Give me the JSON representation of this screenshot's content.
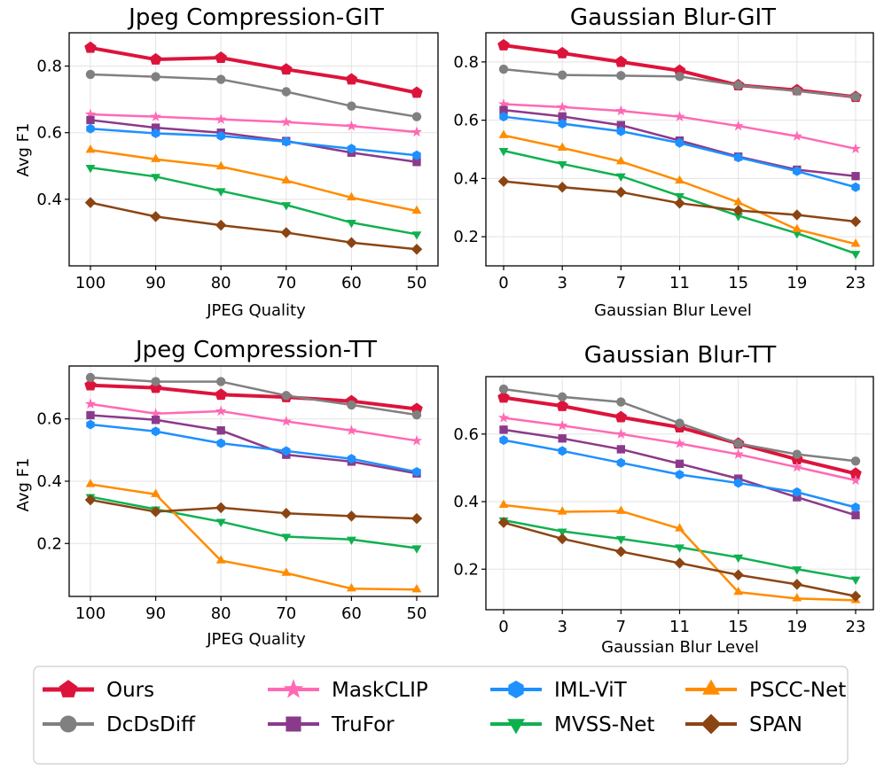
{
  "series_styles": [
    {
      "name": "Ours",
      "color": "#DC143C",
      "marker": "pentagon",
      "width": 4
    },
    {
      "name": "DcDsDiff",
      "color": "#808080",
      "marker": "circle",
      "width": 2.5
    },
    {
      "name": "MaskCLIP",
      "color": "#FF69B4",
      "marker": "star",
      "width": 2.5
    },
    {
      "name": "TruFor",
      "color": "#8B3A8B",
      "marker": "square",
      "width": 2.5
    },
    {
      "name": "IML-ViT",
      "color": "#1E90FF",
      "marker": "hexagon",
      "width": 2.5
    },
    {
      "name": "MVSS-Net",
      "color": "#0FB14F",
      "marker": "triangle-down",
      "width": 2.5
    },
    {
      "name": "PSCC-Net",
      "color": "#FF8C00",
      "marker": "triangle-up",
      "width": 2.5
    },
    {
      "name": "SPAN",
      "color": "#8B4513",
      "marker": "diamond",
      "width": 2.5
    }
  ],
  "legend": {
    "entries": [
      "Ours",
      "MaskCLIP",
      "IML-ViT",
      "PSCC-Net",
      "DcDsDiff",
      "TruFor",
      "MVSS-Net",
      "SPAN"
    ]
  },
  "chart_data": [
    {
      "type": "line",
      "title": "Jpeg Compression-GIT",
      "xlabel": "JPEG Quality",
      "ylabel": "Avg F1",
      "categories": [
        "100",
        "90",
        "80",
        "70",
        "60",
        "50"
      ],
      "ylim": [
        0.2,
        0.9
      ],
      "yticks": [
        0.4,
        0.6,
        0.8
      ],
      "ytick_labels": [
        "0.4",
        "0.6",
        "0.8"
      ],
      "grid": true,
      "series": [
        {
          "name": "Ours",
          "values": [
            0.855,
            0.82,
            0.825,
            0.79,
            0.76,
            0.72
          ]
        },
        {
          "name": "DcDsDiff",
          "values": [
            0.775,
            0.768,
            0.76,
            0.723,
            0.68,
            0.648
          ]
        },
        {
          "name": "MaskCLIP",
          "values": [
            0.655,
            0.648,
            0.64,
            0.632,
            0.62,
            0.602
          ]
        },
        {
          "name": "TruFor",
          "values": [
            0.638,
            0.615,
            0.6,
            0.575,
            0.54,
            0.512
          ]
        },
        {
          "name": "IML-ViT",
          "values": [
            0.612,
            0.598,
            0.59,
            0.573,
            0.552,
            0.532
          ]
        },
        {
          "name": "MVSS-Net",
          "values": [
            0.495,
            0.468,
            0.425,
            0.383,
            0.33,
            0.295
          ]
        },
        {
          "name": "PSCC-Net",
          "values": [
            0.548,
            0.52,
            0.498,
            0.456,
            0.405,
            0.365
          ]
        },
        {
          "name": "SPAN",
          "values": [
            0.39,
            0.348,
            0.322,
            0.3,
            0.27,
            0.25
          ]
        }
      ]
    },
    {
      "type": "line",
      "title": "Gaussian Blur-GIT",
      "xlabel": "Gaussian Blur Level",
      "ylabel": "",
      "categories": [
        "0",
        "3",
        "7",
        "11",
        "15",
        "19",
        "23"
      ],
      "ylim": [
        0.1,
        0.9
      ],
      "yticks": [
        0.2,
        0.4,
        0.6,
        0.8
      ],
      "ytick_labels": [
        "0.2",
        "0.4",
        "0.6",
        "0.8"
      ],
      "grid": true,
      "series": [
        {
          "name": "Ours",
          "values": [
            0.857,
            0.83,
            0.8,
            0.77,
            0.72,
            0.703,
            0.68
          ]
        },
        {
          "name": "DcDsDiff",
          "values": [
            0.775,
            0.755,
            0.753,
            0.75,
            0.72,
            0.7,
            0.68
          ]
        },
        {
          "name": "MaskCLIP",
          "values": [
            0.655,
            0.645,
            0.632,
            0.612,
            0.58,
            0.545,
            0.502
          ]
        },
        {
          "name": "TruFor",
          "values": [
            0.635,
            0.613,
            0.583,
            0.53,
            0.475,
            0.43,
            0.408
          ]
        },
        {
          "name": "IML-ViT",
          "values": [
            0.612,
            0.588,
            0.562,
            0.522,
            0.472,
            0.425,
            0.37
          ]
        },
        {
          "name": "MVSS-Net",
          "values": [
            0.495,
            0.45,
            0.408,
            0.34,
            0.272,
            0.212,
            0.142
          ]
        },
        {
          "name": "PSCC-Net",
          "values": [
            0.548,
            0.505,
            0.458,
            0.392,
            0.318,
            0.225,
            0.175
          ]
        },
        {
          "name": "SPAN",
          "values": [
            0.39,
            0.37,
            0.353,
            0.315,
            0.29,
            0.275,
            0.252
          ]
        }
      ]
    },
    {
      "type": "line",
      "title": "Jpeg Compression-TT",
      "xlabel": "JPEG Quality",
      "ylabel": "Avg F1",
      "categories": [
        "100",
        "90",
        "80",
        "70",
        "60",
        "50"
      ],
      "ylim": [
        0.03,
        0.77
      ],
      "yticks": [
        0.2,
        0.4,
        0.6
      ],
      "ytick_labels": [
        "0.2",
        "0.4",
        "0.6"
      ],
      "grid": true,
      "series": [
        {
          "name": "Ours",
          "values": [
            0.708,
            0.7,
            0.678,
            0.67,
            0.657,
            0.632
          ]
        },
        {
          "name": "DcDsDiff",
          "values": [
            0.733,
            0.72,
            0.72,
            0.675,
            0.645,
            0.613
          ]
        },
        {
          "name": "MaskCLIP",
          "values": [
            0.648,
            0.617,
            0.625,
            0.592,
            0.563,
            0.53
          ]
        },
        {
          "name": "TruFor",
          "values": [
            0.612,
            0.597,
            0.563,
            0.485,
            0.463,
            0.425
          ]
        },
        {
          "name": "IML-ViT",
          "values": [
            0.582,
            0.56,
            0.522,
            0.497,
            0.472,
            0.43
          ]
        },
        {
          "name": "MVSS-Net",
          "values": [
            0.35,
            0.31,
            0.27,
            0.222,
            0.213,
            0.185
          ]
        },
        {
          "name": "PSCC-Net",
          "values": [
            0.39,
            0.358,
            0.145,
            0.105,
            0.055,
            0.052
          ]
        },
        {
          "name": "SPAN",
          "values": [
            0.34,
            0.302,
            0.315,
            0.297,
            0.288,
            0.28
          ]
        }
      ]
    },
    {
      "type": "line",
      "title": "Gaussian Blur-TT",
      "xlabel": "Gaussian Blur Level",
      "ylabel": "",
      "categories": [
        "0",
        "3",
        "7",
        "11",
        "15",
        "19",
        "23"
      ],
      "ylim": [
        0.08,
        0.77
      ],
      "yticks": [
        0.2,
        0.4,
        0.6
      ],
      "ytick_labels": [
        "0.2",
        "0.4",
        "0.6"
      ],
      "grid": true,
      "series": [
        {
          "name": "Ours",
          "values": [
            0.708,
            0.683,
            0.65,
            0.62,
            0.572,
            0.525,
            0.483
          ]
        },
        {
          "name": "DcDsDiff",
          "values": [
            0.733,
            0.71,
            0.695,
            0.632,
            0.572,
            0.54,
            0.52
          ]
        },
        {
          "name": "MaskCLIP",
          "values": [
            0.648,
            0.625,
            0.6,
            0.572,
            0.54,
            0.502,
            0.463
          ]
        },
        {
          "name": "TruFor",
          "values": [
            0.613,
            0.587,
            0.555,
            0.512,
            0.468,
            0.413,
            0.36
          ]
        },
        {
          "name": "IML-ViT",
          "values": [
            0.582,
            0.55,
            0.515,
            0.48,
            0.455,
            0.428,
            0.383
          ]
        },
        {
          "name": "MVSS-Net",
          "values": [
            0.345,
            0.312,
            0.29,
            0.265,
            0.235,
            0.2,
            0.17
          ]
        },
        {
          "name": "PSCC-Net",
          "values": [
            0.39,
            0.37,
            0.372,
            0.32,
            0.132,
            0.113,
            0.108
          ]
        },
        {
          "name": "SPAN",
          "values": [
            0.338,
            0.29,
            0.252,
            0.218,
            0.183,
            0.155,
            0.12
          ]
        }
      ]
    }
  ]
}
